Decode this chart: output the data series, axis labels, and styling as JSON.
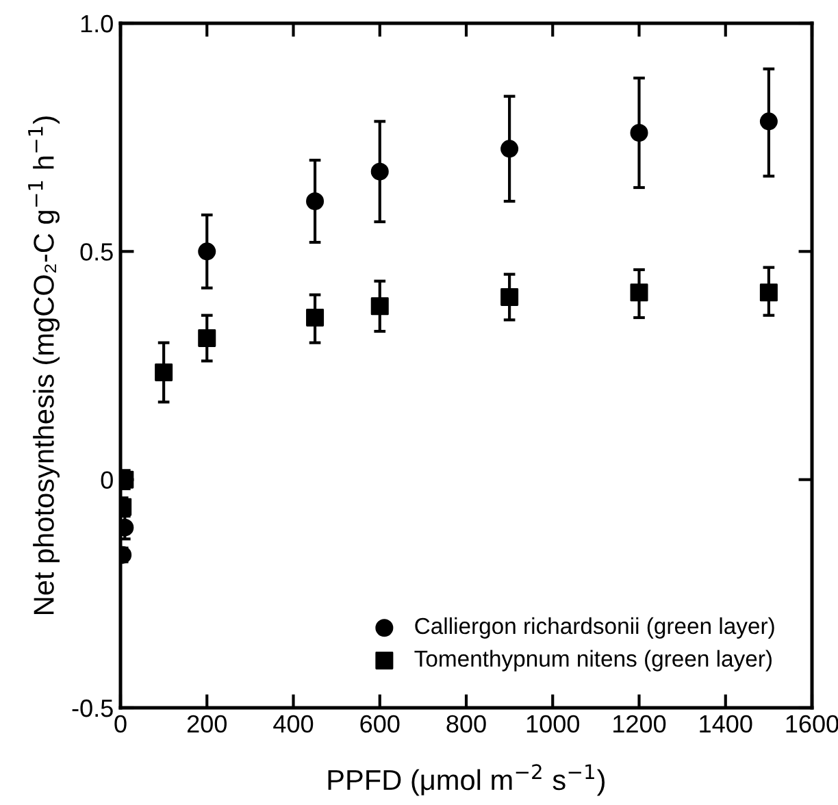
{
  "chart_data": {
    "type": "scatter",
    "xlabel": "PPFD (μmol m$^{−2}$ s$^{−1}$)",
    "ylabel": "Net photosynthesis (mgCO₂-C g$^{−1}$ h$^{−1}$)",
    "xlim": [
      0,
      1600
    ],
    "xticks": [
      0,
      200,
      400,
      600,
      800,
      1000,
      1200,
      1400,
      1600
    ],
    "ylim": [
      -0.5,
      1.0
    ],
    "yticks": [
      {
        "value": -0.5,
        "label": "-0.5"
      },
      {
        "value": 0,
        "label": "0"
      },
      {
        "value": 0.5,
        "label": "0.5"
      },
      {
        "value": 1.0,
        "label": "1.0"
      }
    ],
    "grid": false,
    "legend": "bottom right",
    "series": [
      {
        "name": "Calliergon richardsonii (green layer)",
        "color": "#000000",
        "marker": "circle",
        "x": [
          5,
          10,
          200,
          450,
          600,
          900,
          1200,
          1500
        ],
        "values": [
          -0.165,
          -0.105,
          0.5,
          0.61,
          0.675,
          0.725,
          0.76,
          0.785
        ],
        "errors": [
          [
            -0.18,
            -0.15
          ],
          [
            -0.13,
            -0.08
          ],
          [
            0.42,
            0.58
          ],
          [
            0.52,
            0.7
          ],
          [
            0.565,
            0.785
          ],
          [
            0.61,
            0.84
          ],
          [
            0.64,
            0.88
          ],
          [
            0.665,
            0.9
          ]
        ]
      },
      {
        "name": "Tomenthypnum nitens (green layer)",
        "color": "#000000",
        "marker": "square",
        "x": [
          5,
          10,
          100,
          200,
          450,
          600,
          900,
          1200,
          1500
        ],
        "values": [
          -0.06,
          0.0,
          0.235,
          0.31,
          0.355,
          0.38,
          0.4,
          0.41,
          0.41
        ],
        "errors": [
          [
            -0.08,
            -0.04
          ],
          [
            -0.02,
            0.02
          ],
          [
            0.17,
            0.3
          ],
          [
            0.26,
            0.36
          ],
          [
            0.3,
            0.405
          ],
          [
            0.325,
            0.435
          ],
          [
            0.35,
            0.45
          ],
          [
            0.355,
            0.46
          ],
          [
            0.36,
            0.465
          ]
        ]
      }
    ]
  }
}
